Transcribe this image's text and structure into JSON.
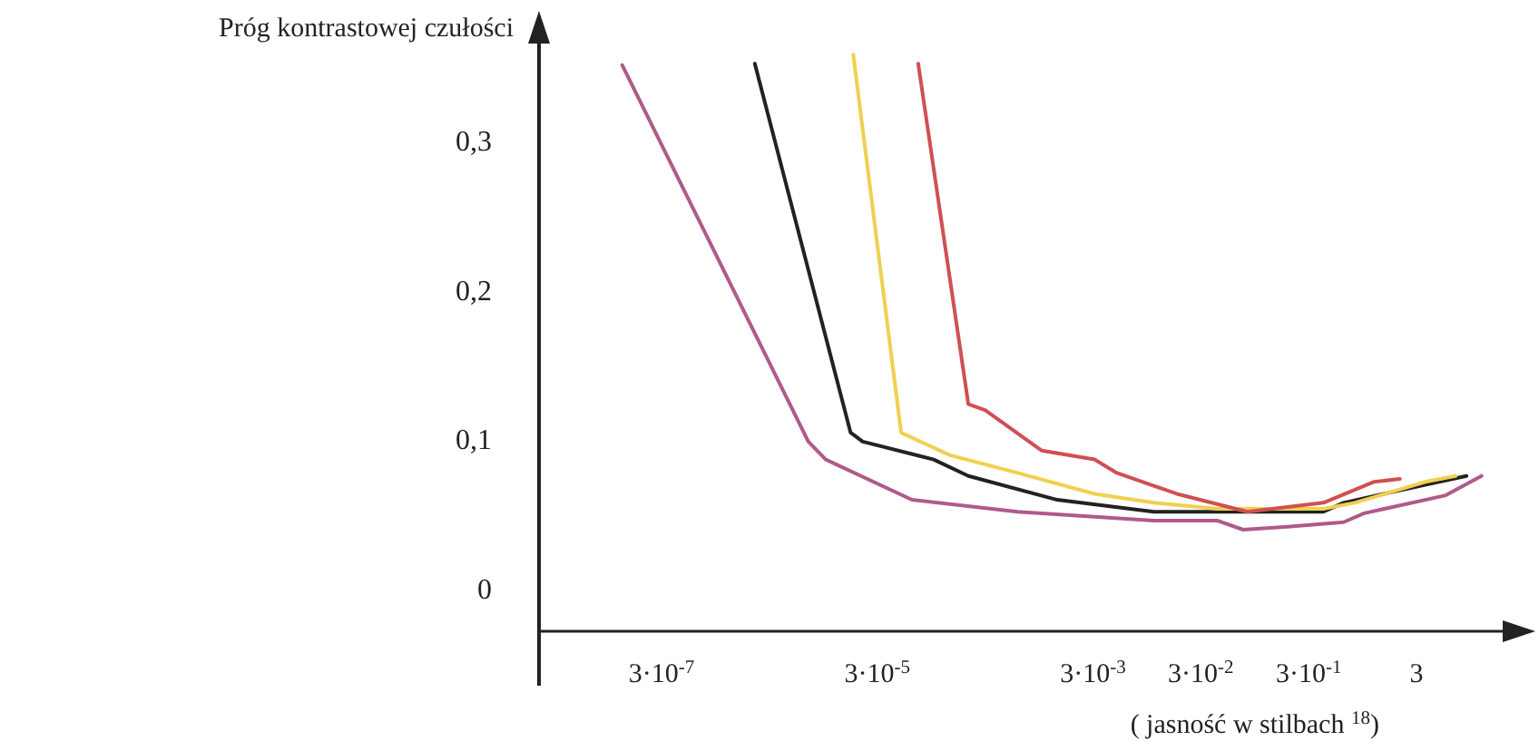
{
  "chart_data": {
    "type": "line",
    "ylabel": "Próg kontrastowej czułości",
    "xlabel": "( jasność w stilbach $^{18}$)",
    "log": "x",
    "xlim": [
      2.2e-08,
      30
    ],
    "ylim": [
      -0.028,
      0.38
    ],
    "xticks": [
      {
        "value": 3e-07,
        "label": "3·10$^{-7}$"
      },
      {
        "value": 3e-05,
        "label": "3·10$^{-5}$"
      },
      {
        "value": 0.003,
        "label": "3·10$^{-3}$"
      },
      {
        "value": 0.03,
        "label": "3·10$^{-2}$"
      },
      {
        "value": 0.3,
        "label": "3·10$^{-1}$"
      },
      {
        "value": 3,
        "label": "3"
      }
    ],
    "yticks": [
      {
        "value": 0,
        "label": "0"
      },
      {
        "value": 0.1,
        "label": "0,1"
      },
      {
        "value": 0.2,
        "label": "0,2"
      },
      {
        "value": 0.3,
        "label": "0,3"
      }
    ],
    "line_style": "solid",
    "series": [
      {
        "color": "#b05a8a",
        "x": [
          1.3e-07,
          6.9e-06,
          1e-05,
          6.3e-05,
          0.0006,
          0.011,
          0.043,
          0.074,
          0.19,
          0.63,
          0.98,
          5.6,
          12
        ],
        "values": [
          0.351,
          0.099,
          0.087,
          0.06,
          0.052,
          0.046,
          0.046,
          0.04,
          0.042,
          0.045,
          0.051,
          0.063,
          0.076
        ]
      },
      {
        "color": "#222222",
        "x": [
          2.2e-06,
          1.7e-05,
          2.2e-05,
          0.0001,
          0.00021,
          0.0014,
          0.011,
          0.067,
          0.41,
          0.63,
          3.6,
          8.7
        ],
        "values": [
          0.352,
          0.105,
          0.099,
          0.087,
          0.076,
          0.06,
          0.052,
          0.052,
          0.052,
          0.058,
          0.07,
          0.076
        ]
      },
      {
        "color": "#f0d050",
        "x": [
          1.8e-05,
          5e-05,
          0.00014,
          0.0006,
          0.0031,
          0.011,
          0.043,
          0.41,
          0.8,
          3.6,
          6.9
        ],
        "values": [
          0.358,
          0.105,
          0.09,
          0.078,
          0.064,
          0.058,
          0.054,
          0.054,
          0.058,
          0.072,
          0.076
        ]
      },
      {
        "color": "#d05050",
        "x": [
          7.2e-05,
          0.00021,
          0.0003,
          0.001,
          0.0031,
          0.005,
          0.018,
          0.081,
          0.41,
          1.2,
          2.1
        ],
        "values": [
          0.352,
          0.124,
          0.12,
          0.093,
          0.087,
          0.078,
          0.064,
          0.052,
          0.058,
          0.072,
          0.074
        ]
      }
    ]
  }
}
